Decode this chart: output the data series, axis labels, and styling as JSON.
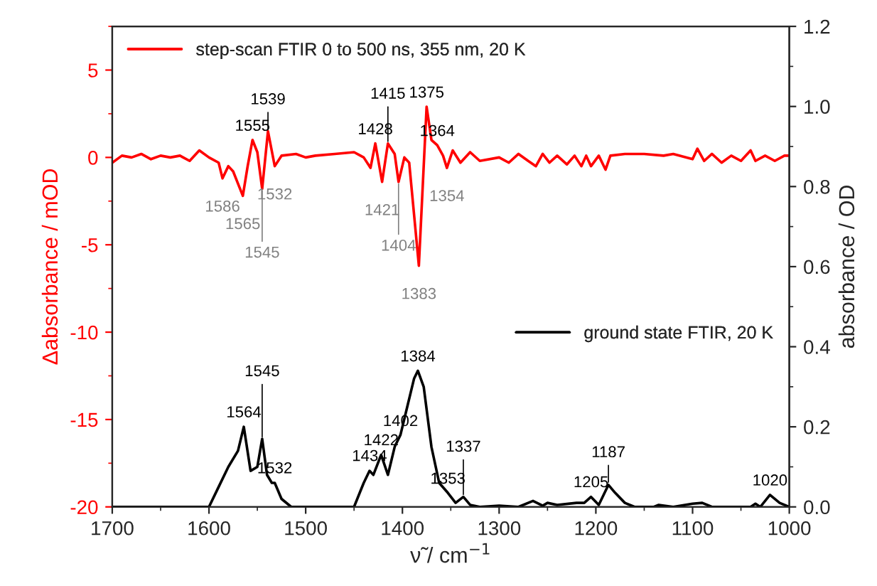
{
  "chart_data": {
    "type": "line",
    "xlabel": "ν̃ / cm$^{−1}$",
    "ylabel": "Δabsorbance / mOD",
    "y2label": "absorbance / OD",
    "xlim": [
      1700,
      1000
    ],
    "xticks": [
      1700,
      1600,
      1500,
      1400,
      1300,
      1200,
      1100,
      1000
    ],
    "ylim": [
      -20,
      7.5
    ],
    "yticks": [
      -20,
      -15,
      -10,
      -5,
      0,
      5
    ],
    "y2lim": [
      0,
      1.2
    ],
    "y2ticks": [
      {
        "value": 0,
        "label": "0.0"
      },
      {
        "value": 0.2,
        "label": "0.2"
      },
      {
        "value": 0.4,
        "label": "0.4"
      },
      {
        "value": 0.6,
        "label": "0.6"
      },
      {
        "value": 0.8,
        "label": "0.8"
      },
      {
        "value": 1.0,
        "label": "1.0"
      },
      {
        "value": 1.2,
        "label": "1.2"
      }
    ],
    "grid": false,
    "legend": "top left",
    "series": [
      {
        "name": "step-scan FTIR 0 to 500 ns, 355 nm, 20 K",
        "color": "#ff0000",
        "x": [
          1700,
          1690,
          1680,
          1670,
          1660,
          1650,
          1640,
          1630,
          1620,
          1610,
          1600,
          1590,
          1586,
          1580,
          1575,
          1565,
          1560,
          1555,
          1550,
          1545,
          1539,
          1532,
          1525,
          1510,
          1500,
          1490,
          1470,
          1450,
          1440,
          1433,
          1428,
          1421,
          1415,
          1408,
          1404,
          1398,
          1393,
          1383,
          1375,
          1370,
          1364,
          1358,
          1354,
          1348,
          1340,
          1330,
          1320,
          1300,
          1290,
          1280,
          1270,
          1262,
          1255,
          1248,
          1240,
          1230,
          1222,
          1215,
          1210,
          1205,
          1197,
          1190,
          1185,
          1170,
          1150,
          1130,
          1120,
          1100,
          1095,
          1088,
          1080,
          1070,
          1060,
          1050,
          1040,
          1035,
          1025,
          1015,
          1005,
          1000
        ],
        "values": [
          -0.3,
          0.1,
          0,
          0.2,
          -0.1,
          0.1,
          0,
          0.1,
          -0.2,
          0.4,
          0,
          -0.3,
          -1.2,
          -0.5,
          -0.8,
          -2.2,
          -0.5,
          1.0,
          0.3,
          -1.8,
          1.5,
          -0.5,
          0.1,
          0.2,
          0,
          0.1,
          0.2,
          0.3,
          0,
          -0.6,
          0.8,
          -1.4,
          0.8,
          0.2,
          -1.4,
          0,
          -0.3,
          -6.2,
          2.9,
          1.0,
          0.7,
          0.1,
          -0.6,
          0.4,
          -0.3,
          0.3,
          -0.2,
          0,
          -0.3,
          0.2,
          -0.2,
          -0.5,
          0.2,
          -0.3,
          0.1,
          -0.4,
          0.1,
          -0.5,
          0.1,
          -0.5,
          0.1,
          -0.7,
          0.1,
          0.2,
          0.2,
          0.1,
          0.2,
          -0.1,
          0.5,
          -0.2,
          0.2,
          -0.3,
          0.1,
          -0.2,
          0.4,
          -0.2,
          0.1,
          -0.2,
          0.1,
          0.1
        ]
      },
      {
        "name": "ground state FTIR, 20 K",
        "color": "#000000",
        "axis": "y2",
        "x": [
          1700,
          1600,
          1590,
          1580,
          1570,
          1564,
          1557,
          1550,
          1545,
          1540,
          1535,
          1532,
          1525,
          1515,
          1450,
          1440,
          1434,
          1430,
          1422,
          1415,
          1408,
          1402,
          1395,
          1388,
          1384,
          1378,
          1370,
          1362,
          1353,
          1345,
          1337,
          1330,
          1320,
          1300,
          1280,
          1265,
          1255,
          1250,
          1240,
          1220,
          1212,
          1205,
          1197,
          1187,
          1180,
          1170,
          1160,
          1140,
          1135,
          1120,
          1100,
          1090,
          1080,
          1040,
          1035,
          1030,
          1020,
          1010,
          1000
        ],
        "values": [
          0,
          0,
          0.05,
          0.1,
          0.14,
          0.2,
          0.09,
          0.1,
          0.17,
          0.08,
          0.06,
          0.06,
          0.02,
          0,
          0,
          0.06,
          0.09,
          0.08,
          0.13,
          0.08,
          0.15,
          0.18,
          0.25,
          0.32,
          0.34,
          0.3,
          0.15,
          0.06,
          0.035,
          0.01,
          0.025,
          0.005,
          0,
          0.003,
          0,
          0.015,
          0.003,
          0.01,
          0.005,
          0.01,
          0.01,
          0.025,
          0.005,
          0.055,
          0.035,
          0.01,
          0,
          0,
          0.005,
          0,
          0.008,
          0.01,
          0,
          0,
          0.008,
          0,
          0.03,
          0.01,
          0
        ]
      }
    ],
    "annotations": [
      {
        "text": "1555",
        "x": 1555,
        "y": 1.0
      },
      {
        "text": "1539",
        "x": 1539,
        "y": 1.5
      },
      {
        "text": "1428",
        "x": 1428,
        "y": 0.8
      },
      {
        "text": "1415",
        "x": 1415,
        "y": 0.8
      },
      {
        "text": "1375",
        "x": 1375,
        "y": 2.9
      },
      {
        "text": "1364",
        "x": 1364,
        "y": 0.7
      },
      {
        "text": "1586",
        "x": 1586,
        "y": -1.2
      },
      {
        "text": "1565",
        "x": 1565,
        "y": -2.2
      },
      {
        "text": "1545",
        "x": 1545,
        "y": -1.8
      },
      {
        "text": "1532",
        "x": 1532,
        "y": -0.5
      },
      {
        "text": "1421",
        "x": 1421,
        "y": -1.4
      },
      {
        "text": "1404",
        "x": 1404,
        "y": -1.4
      },
      {
        "text": "1383",
        "x": 1383,
        "y": -6.2
      },
      {
        "text": "1354",
        "x": 1354,
        "y": -0.6
      },
      {
        "text": "1564",
        "x": 1564,
        "y": -15.4
      },
      {
        "text": "1545",
        "x": 1545,
        "y": -16.1
      },
      {
        "text": "1532",
        "x": 1532,
        "y": -18.6
      },
      {
        "text": "1434",
        "x": 1434,
        "y": -17.9
      },
      {
        "text": "1422",
        "x": 1422,
        "y": -17.0
      },
      {
        "text": "1402",
        "x": 1402,
        "y": -15.9
      },
      {
        "text": "1384",
        "x": 1384,
        "y": -12.2
      },
      {
        "text": "1353",
        "x": 1353,
        "y": -19.2
      },
      {
        "text": "1337",
        "x": 1337,
        "y": -19.4
      },
      {
        "text": "1205",
        "x": 1205,
        "y": -19.4
      },
      {
        "text": "1187",
        "x": 1187,
        "y": -18.7
      },
      {
        "text": "1020",
        "x": 1020,
        "y": -19.3
      }
    ]
  }
}
